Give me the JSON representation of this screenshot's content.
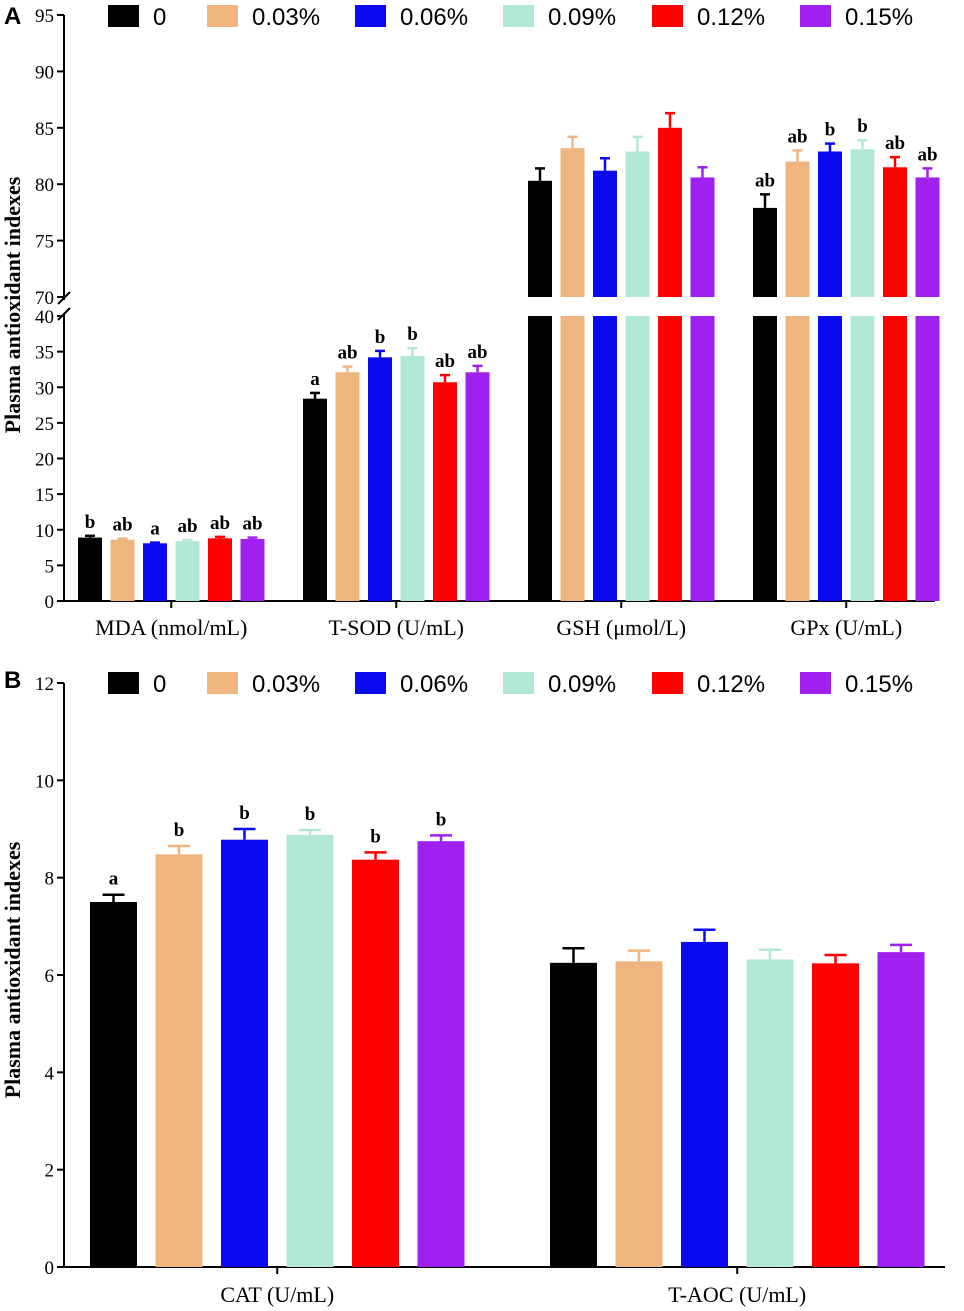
{
  "colors": [
    "#000000",
    "#f0b47e",
    "#0a0af0",
    "#b3e8d6",
    "#ff0000",
    "#a020f0"
  ],
  "chart_data": [
    {
      "type": "bar",
      "panel_label": "A",
      "ylabel": "Plasma antioxidant indexes",
      "legend": [
        "0",
        "0.03%",
        "0.06%",
        "0.09%",
        "0.12%",
        "0.15%"
      ],
      "legend_position": "top",
      "categories": [
        "MDA (nmol/mL)",
        "T-SOD (U/mL)",
        "GSH (μmol/L)",
        "GPx (U/mL)"
      ],
      "axis_break": {
        "lower_range": [
          0,
          40
        ],
        "upper_range": [
          70,
          95
        ]
      },
      "lower_ticks": [
        0,
        5,
        10,
        15,
        20,
        25,
        30,
        35,
        40
      ],
      "upper_ticks": [
        70,
        75,
        80,
        85,
        90,
        95
      ],
      "series": [
        {
          "name": "0",
          "values": [
            8.9,
            28.4,
            80.3,
            77.9
          ],
          "errors": [
            0.25,
            0.8,
            1.1,
            1.2
          ]
        },
        {
          "name": "0.03%",
          "values": [
            8.6,
            32.1,
            83.2,
            82.0
          ],
          "errors": [
            0.15,
            0.8,
            1.0,
            1.0
          ]
        },
        {
          "name": "0.06%",
          "values": [
            8.1,
            34.2,
            81.2,
            82.9
          ],
          "errors": [
            0.1,
            0.9,
            1.1,
            0.7
          ]
        },
        {
          "name": "0.09%",
          "values": [
            8.4,
            34.4,
            82.9,
            83.1
          ],
          "errors": [
            0.15,
            1.1,
            1.3,
            0.8
          ]
        },
        {
          "name": "0.12%",
          "values": [
            8.8,
            30.7,
            85.0,
            81.5
          ],
          "errors": [
            0.2,
            1.0,
            1.3,
            0.9
          ]
        },
        {
          "name": "0.15%",
          "values": [
            8.7,
            32.1,
            80.6,
            80.6
          ],
          "errors": [
            0.2,
            0.9,
            0.9,
            0.8
          ]
        }
      ],
      "annotations": [
        [
          "b",
          "a",
          "",
          "ab"
        ],
        [
          "ab",
          "ab",
          "",
          "ab"
        ],
        [
          "a",
          "b",
          "",
          "b"
        ],
        [
          "ab",
          "b",
          "",
          "b"
        ],
        [
          "ab",
          "ab",
          "",
          "ab"
        ],
        [
          "ab",
          "ab",
          "",
          "ab"
        ]
      ]
    },
    {
      "type": "bar",
      "panel_label": "B",
      "ylabel": "Plasma antioxidant indexes",
      "legend": [
        "0",
        "0.03%",
        "0.06%",
        "0.09%",
        "0.12%",
        "0.15%"
      ],
      "legend_position": "top",
      "categories": [
        "CAT (U/mL)",
        "T-AOC (U/mL)"
      ],
      "ylim": [
        0,
        12
      ],
      "yticks": [
        0,
        2,
        4,
        6,
        8,
        10,
        12
      ],
      "series": [
        {
          "name": "0",
          "values": [
            7.5,
            6.25
          ],
          "errors": [
            0.15,
            0.3
          ]
        },
        {
          "name": "0.03%",
          "values": [
            8.48,
            6.28
          ],
          "errors": [
            0.17,
            0.22
          ]
        },
        {
          "name": "0.06%",
          "values": [
            8.78,
            6.68
          ],
          "errors": [
            0.22,
            0.25
          ]
        },
        {
          "name": "0.09%",
          "values": [
            8.88,
            6.32
          ],
          "errors": [
            0.1,
            0.2
          ]
        },
        {
          "name": "0.12%",
          "values": [
            8.37,
            6.24
          ],
          "errors": [
            0.15,
            0.17
          ]
        },
        {
          "name": "0.15%",
          "values": [
            8.75,
            6.47
          ],
          "errors": [
            0.12,
            0.15
          ]
        }
      ],
      "annotations": [
        [
          "a",
          ""
        ],
        [
          "b",
          ""
        ],
        [
          "b",
          ""
        ],
        [
          "b",
          ""
        ],
        [
          "b",
          ""
        ],
        [
          "b",
          ""
        ]
      ]
    }
  ]
}
